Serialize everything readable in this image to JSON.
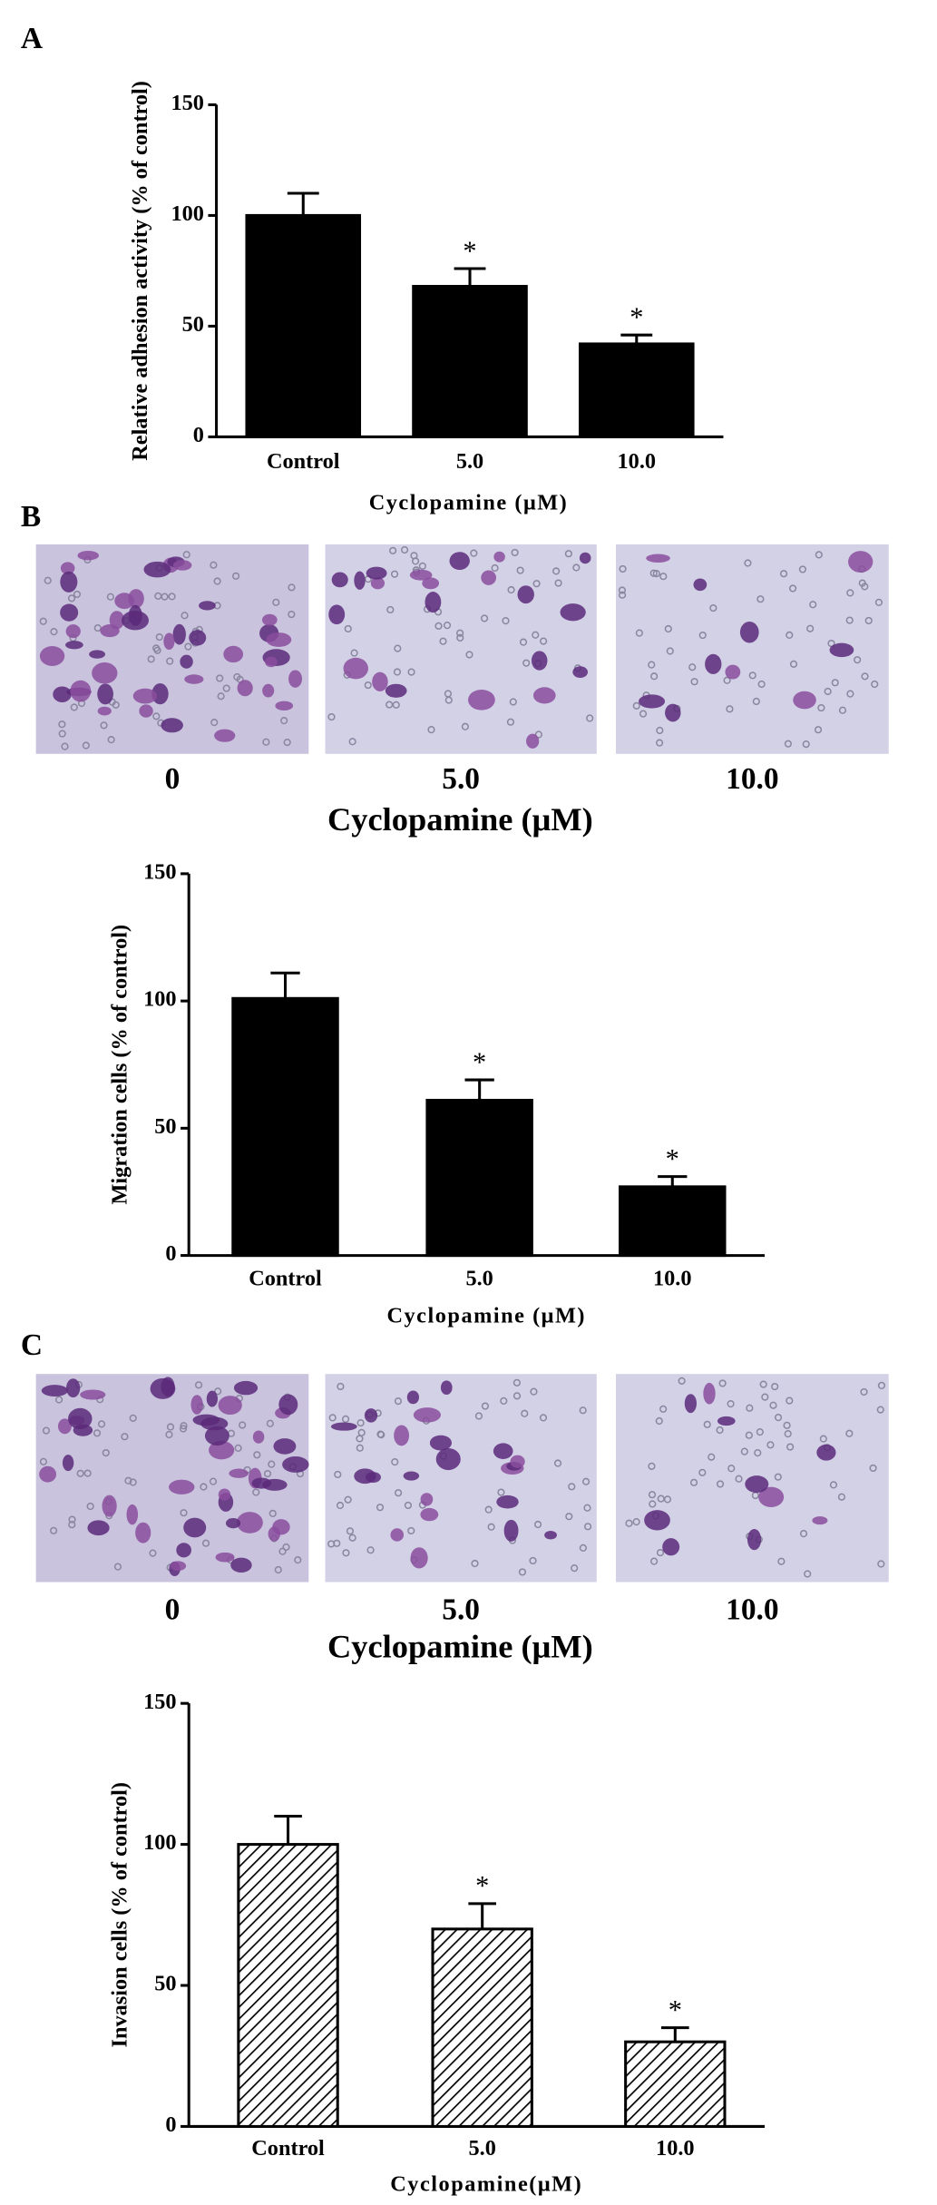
{
  "panel_labels": [
    "A",
    "B",
    "C"
  ],
  "image_rows": [
    {
      "labels": [
        "0",
        "5.0",
        "10.0"
      ],
      "axis_label": "Cyclopamine (μM)"
    },
    {
      "labels": [
        "0",
        "5.0",
        "10.0"
      ],
      "axis_label": "Cyclopamine (μM)"
    }
  ],
  "chart_data": [
    {
      "type": "bar",
      "y_label": "Relative adhesion activity (% of control)",
      "x_label": "Cyclopamine (μM)",
      "categories": [
        "Control",
        "5.0",
        "10.0"
      ],
      "values": [
        100,
        68,
        42
      ],
      "errors": [
        10,
        8,
        4
      ],
      "significance": [
        null,
        "*",
        "*"
      ],
      "ylim": [
        0,
        150
      ],
      "yticks": [
        0,
        50,
        100,
        150
      ],
      "color": "#000000",
      "hatch": false
    },
    {
      "type": "bar",
      "y_label": "Migration cells (% of control)",
      "x_label": "Cyclopamine (μM)",
      "categories": [
        "Control",
        "5.0",
        "10.0"
      ],
      "values": [
        101,
        61,
        27
      ],
      "errors": [
        10,
        8,
        4
      ],
      "significance": [
        null,
        "*",
        "*"
      ],
      "ylim": [
        0,
        150
      ],
      "yticks": [
        0,
        50,
        100,
        150
      ],
      "color": "#000000",
      "hatch": false
    },
    {
      "type": "bar",
      "y_label": "Invasion cells (% of control)",
      "x_label": "Cyclopamine(μM)",
      "categories": [
        "Control",
        "5.0",
        "10.0"
      ],
      "values": [
        100,
        70,
        30
      ],
      "errors": [
        10,
        9,
        5
      ],
      "significance": [
        null,
        "*",
        "*"
      ],
      "ylim": [
        0,
        150
      ],
      "yticks": [
        0,
        50,
        100,
        150
      ],
      "color": "#000000",
      "hatch": true
    }
  ]
}
